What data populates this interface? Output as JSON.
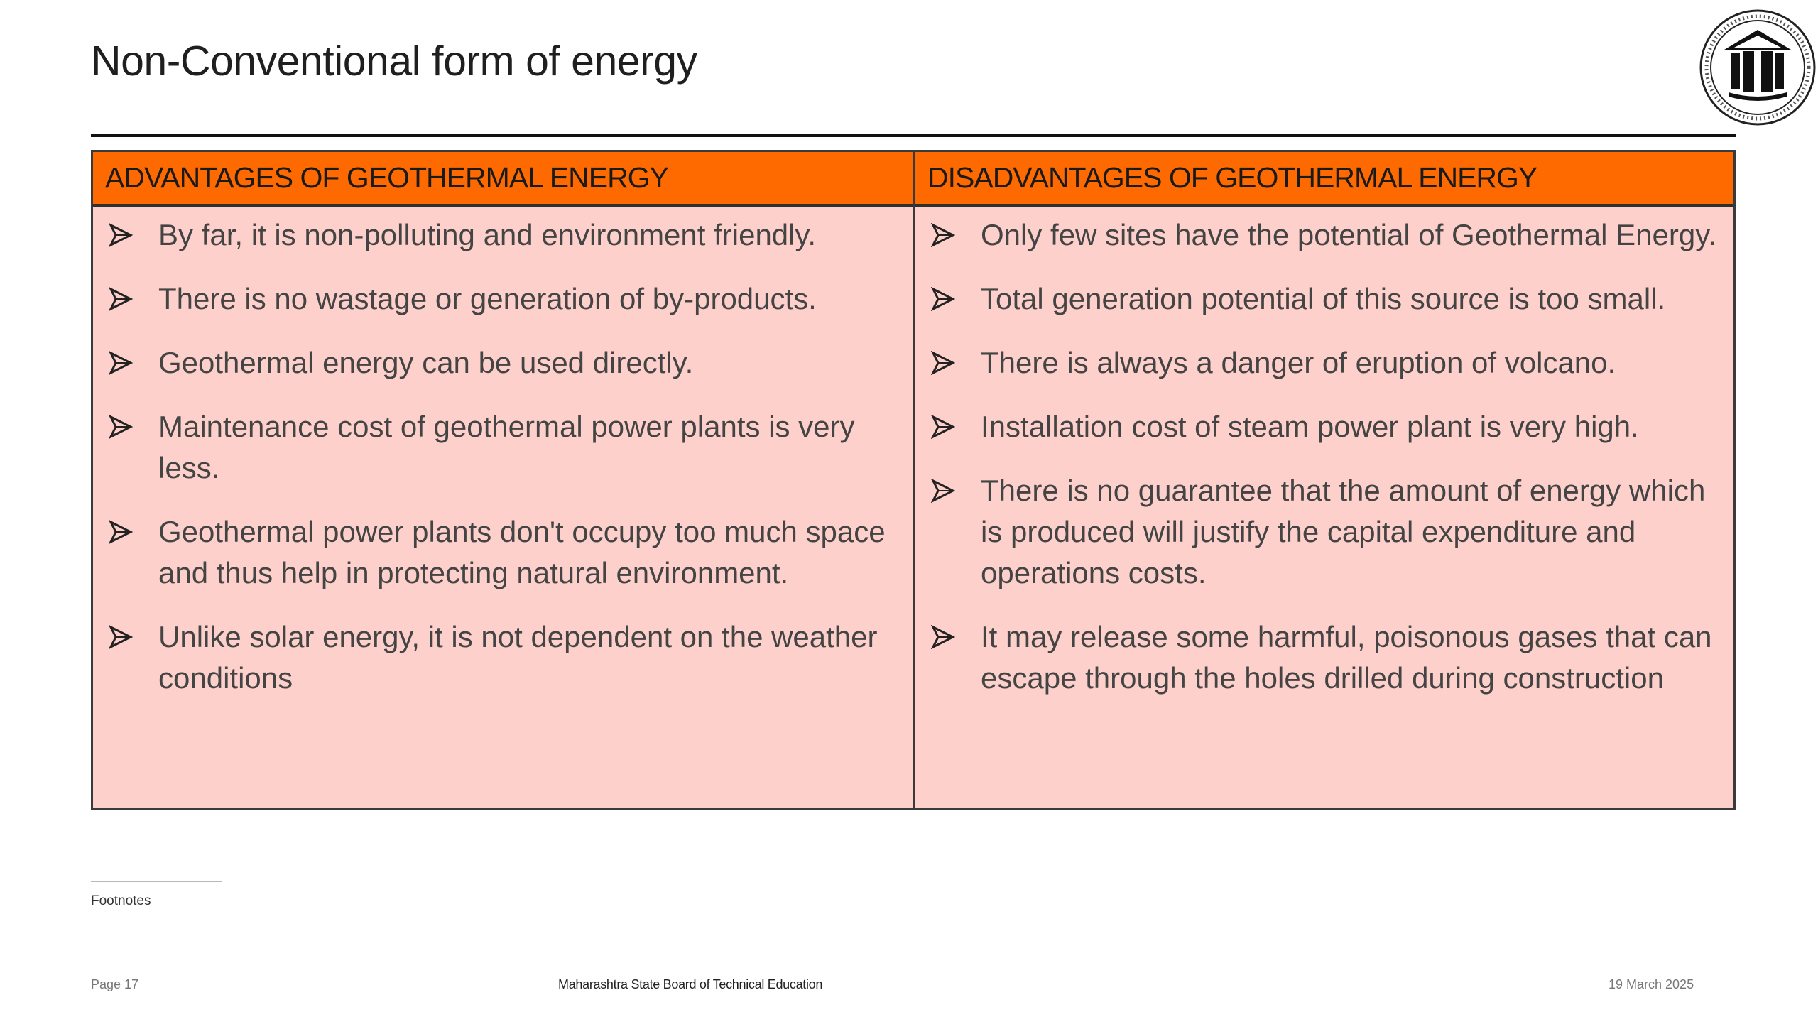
{
  "slide": {
    "title": "Non-Conventional form of energy",
    "logo_icon": "msbte-logo-icon"
  },
  "table": {
    "header_color": "#ff6a00",
    "body_color": "#fdd0cb",
    "advantages": {
      "heading": "ADVANTAGES OF GEOTHERMAL ENERGY",
      "items": [
        "By far, it is non-polluting and environment friendly.",
        "There is no wastage or generation of by-products.",
        "Geothermal energy can be used directly.",
        "Maintenance cost of geothermal power plants is very less.",
        "Geothermal power plants don't occupy too much space and thus help in protecting   natural environment.",
        "Unlike solar energy, it is not dependent on the weather conditions"
      ]
    },
    "disadvantages": {
      "heading": "DISADVANTAGES OF GEOTHERMAL ENERGY",
      "items": [
        "Only few sites have the potential of Geothermal Energy.",
        "Total generation potential of this source is too small.",
        " There is always a danger of eruption of volcano.",
        " Installation cost of steam power plant is very high.",
        " There is no guarantee that the amount of energy which is produced will justify the capital expenditure and operations costs.",
        " It may release some harmful, poisonous gases that can escape through the holes drilled during construction"
      ]
    }
  },
  "footer": {
    "footnotes": "Footnotes",
    "page": "Page 17",
    "organization": "Maharashtra State Board of Technical Education",
    "date": "19 March 2025"
  }
}
